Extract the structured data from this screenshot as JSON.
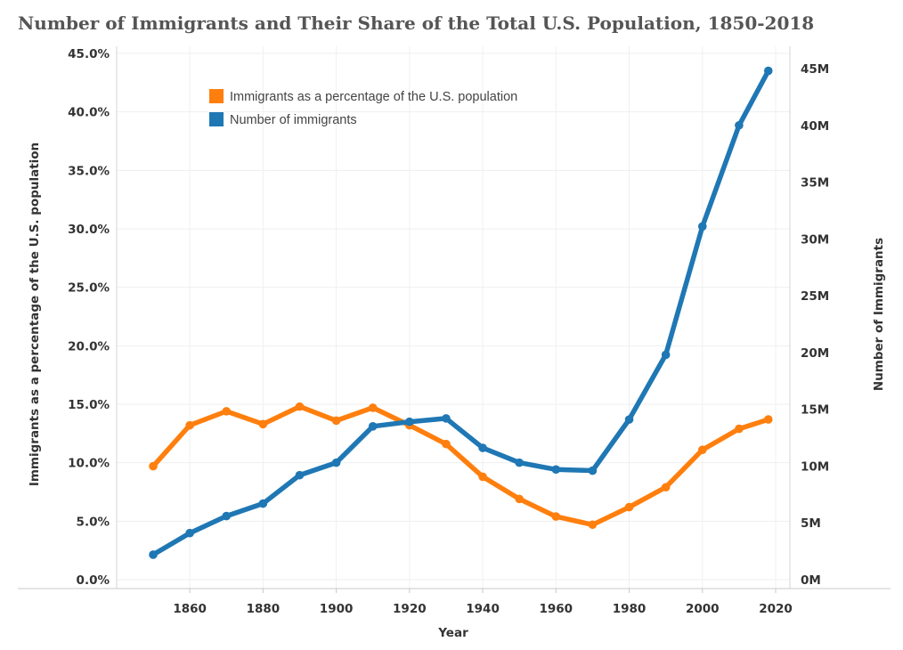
{
  "chart_data": {
    "type": "line",
    "title": "Number of Immigrants and Their Share of the Total U.S. Population, 1850-2018",
    "xlabel": "Year",
    "ylabel_left": "Immigrants as a percentage of the U.S. population",
    "ylabel_right": "Number of Immigrants",
    "x": [
      1850,
      1860,
      1870,
      1880,
      1890,
      1900,
      1910,
      1920,
      1930,
      1940,
      1950,
      1960,
      1970,
      1980,
      1990,
      2000,
      2010,
      2018
    ],
    "x_ticks": [
      "1860",
      "1880",
      "1900",
      "1920",
      "1940",
      "1960",
      "1980",
      "2000",
      "2020"
    ],
    "left_ticks": [
      "0.0%",
      "5.0%",
      "10.0%",
      "15.0%",
      "20.0%",
      "25.0%",
      "30.0%",
      "35.0%",
      "40.0%",
      "45.0%"
    ],
    "right_ticks": [
      "0M",
      "5M",
      "10M",
      "15M",
      "20M",
      "25M",
      "30M",
      "35M",
      "40M",
      "45M"
    ],
    "ylim_left": [
      0,
      45
    ],
    "ylim_right": [
      0,
      46.2
    ],
    "legend_position": "top-left",
    "series": [
      {
        "name": "Immigrants as a percentage of the U.S. population",
        "axis": "left",
        "color": "#ff7f0e",
        "values": [
          9.7,
          13.2,
          14.4,
          13.3,
          14.8,
          13.6,
          14.7,
          13.2,
          11.6,
          8.8,
          6.9,
          5.4,
          4.7,
          6.2,
          7.9,
          11.1,
          12.9,
          13.7
        ]
      },
      {
        "name": "Number of immigrants",
        "axis": "right",
        "color": "#1f77b4",
        "values": [
          2.2,
          4.1,
          5.6,
          6.7,
          9.2,
          10.3,
          13.5,
          13.9,
          14.2,
          11.6,
          10.3,
          9.7,
          9.6,
          14.1,
          19.8,
          31.1,
          40.0,
          44.8
        ]
      }
    ]
  }
}
